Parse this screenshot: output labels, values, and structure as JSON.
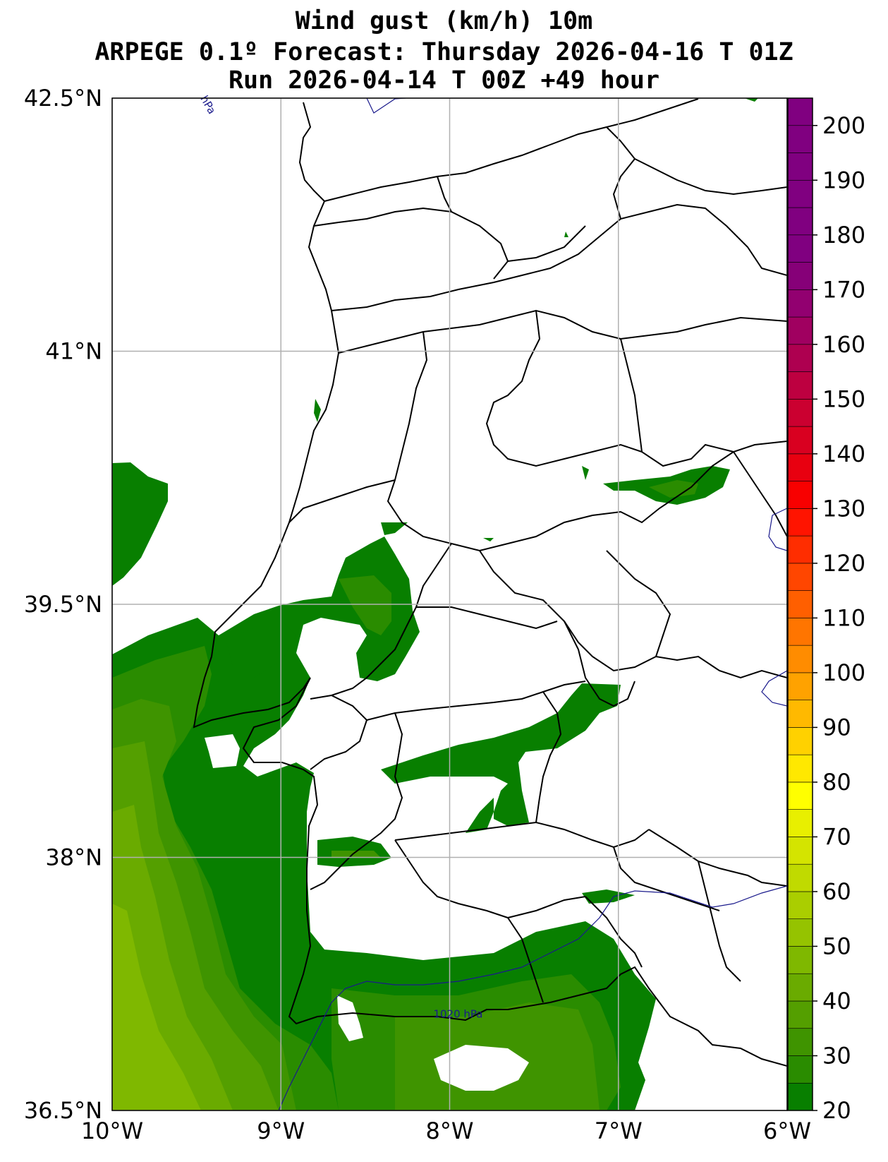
{
  "title": {
    "line1": "Wind gust (km/h) 10m",
    "line2": "ARPEGE 0.1º Forecast: Thursday 2026-04-16 T 01Z",
    "line3": "Run 2026-04-14 T 00Z +49 hour"
  },
  "map": {
    "lon_range": [
      -10,
      -6
    ],
    "lat_range": [
      36.5,
      42.5
    ],
    "x_ticks": [
      {
        "value": -10,
        "label": "10°W"
      },
      {
        "value": -9,
        "label": "9°W"
      },
      {
        "value": -8,
        "label": "8°W"
      },
      {
        "value": -7,
        "label": "7°W"
      },
      {
        "value": -6,
        "label": "6°W"
      }
    ],
    "y_ticks": [
      {
        "value": 42.5,
        "label": "42.5°N"
      },
      {
        "value": 41,
        "label": "41°N"
      },
      {
        "value": 39.5,
        "label": "39.5°N"
      },
      {
        "value": 38,
        "label": "38°N"
      },
      {
        "value": 36.5,
        "label": "36.5°N"
      }
    ],
    "grid": true,
    "isobars": [
      {
        "label": "1020 hPa",
        "lon": -7.95,
        "lat": 37.05
      },
      {
        "label": "hPa",
        "lon": -9.45,
        "lat": 42.45
      }
    ]
  },
  "colorbar": {
    "min": 20,
    "max": 205,
    "step": 5,
    "labels": [
      20,
      30,
      40,
      50,
      60,
      70,
      80,
      90,
      100,
      110,
      120,
      130,
      140,
      150,
      160,
      170,
      180,
      190,
      200
    ],
    "colors": [
      "#087f00",
      "#2a8c00",
      "#3f9400",
      "#549f00",
      "#6aab00",
      "#7fb800",
      "#95c300",
      "#aace00",
      "#c0da00",
      "#d4e400",
      "#e8ef00",
      "#ffff00",
      "#ffe800",
      "#ffd100",
      "#ffb900",
      "#ffa200",
      "#ff8c00",
      "#ff7500",
      "#ff5f00",
      "#ff4600",
      "#ff2d00",
      "#ff1400",
      "#f80000",
      "#e80010",
      "#d90020",
      "#cb0030",
      "#bd0040",
      "#ae0050",
      "#a00060",
      "#920070",
      "#860078",
      "#800080",
      "#800080",
      "#800080",
      "#800080",
      "#800080",
      "#800080"
    ]
  }
}
